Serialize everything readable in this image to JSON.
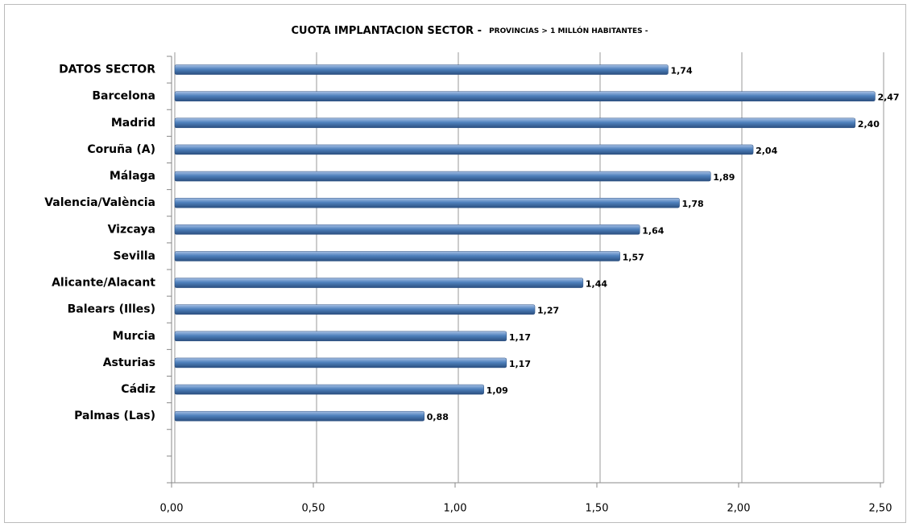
{
  "chart_data": {
    "type": "bar",
    "orientation": "horizontal",
    "title": "CUOTA IMPLANTACION SECTOR -",
    "subtitle": "PROVINCIAS > 1 MILLÓN HABITANTES -",
    "categories": [
      "DATOS SECTOR",
      "Barcelona",
      "Madrid",
      "Coruña (A)",
      "Málaga",
      "Valencia/València",
      "Vizcaya",
      "Sevilla",
      "Alicante/Alacant",
      "Balears (Illes)",
      "Murcia",
      "Asturias",
      "Cádiz",
      "Palmas (Las)",
      null,
      null
    ],
    "values": [
      1.74,
      2.47,
      2.4,
      2.04,
      1.89,
      1.78,
      1.64,
      1.57,
      1.44,
      1.27,
      1.17,
      1.17,
      1.09,
      0.88,
      null,
      null
    ],
    "value_labels": [
      "1,74",
      "2,47",
      "2,40",
      "2,04",
      "1,89",
      "1,78",
      "1,64",
      "1,57",
      "1,44",
      "1,27",
      "1,17",
      "1,17",
      "1,09",
      "0,88",
      null,
      null
    ],
    "color": "#4f81bd",
    "xlim": [
      0,
      2.5
    ],
    "xticks": [
      {
        "value": 0,
        "label": "0,00"
      },
      {
        "value": 0.5,
        "label": "0,50"
      },
      {
        "value": 1,
        "label": "1,00"
      },
      {
        "value": 1.5,
        "label": "1,50"
      },
      {
        "value": 2,
        "label": "2,00"
      },
      {
        "value": 2.5,
        "label": "2,50"
      }
    ],
    "grid": true
  }
}
